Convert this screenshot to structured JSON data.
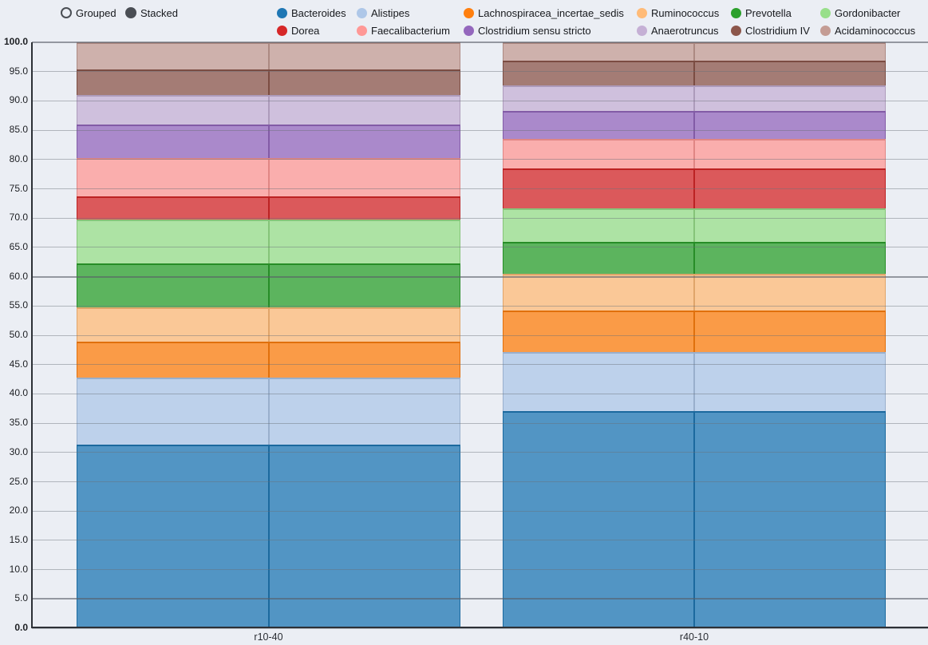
{
  "controls": {
    "grouped_label": "Grouped",
    "stacked_label": "Stacked",
    "selected_mode": "Stacked"
  },
  "chart_data": {
    "type": "bar",
    "subtype": "stacked-percentage",
    "title": "",
    "xlabel": "",
    "ylabel": "",
    "categories": [
      "r10-40",
      "r40-10"
    ],
    "bars_per_category": 2,
    "series": [
      {
        "name": "Bacteroides",
        "color": "#1f77b4",
        "values": [
          31.3,
          37.1
        ]
      },
      {
        "name": "Alistipes",
        "color": "#aec7e8",
        "values": [
          11.5,
          10.1
        ]
      },
      {
        "name": "Lachnospiracea_incertae_sedis",
        "color": "#ff7f0e",
        "values": [
          6.1,
          7.0
        ]
      },
      {
        "name": "Ruminococcus",
        "color": "#ffbb78",
        "values": [
          5.9,
          6.3
        ]
      },
      {
        "name": "Prevotella",
        "color": "#2ca02c",
        "values": [
          7.5,
          5.5
        ]
      },
      {
        "name": "Gordonibacter",
        "color": "#98df8a",
        "values": [
          7.4,
          5.7
        ]
      },
      {
        "name": "Dorea",
        "color": "#d62728",
        "values": [
          4.0,
          6.8
        ]
      },
      {
        "name": "Faecalibacterium",
        "color": "#ff9896",
        "values": [
          6.5,
          5.0
        ]
      },
      {
        "name": "Clostridium sensu stricto",
        "color": "#9467bd",
        "values": [
          5.8,
          4.8
        ]
      },
      {
        "name": "Anaerotruncus",
        "color": "#c5b0d5",
        "values": [
          5.0,
          4.3
        ]
      },
      {
        "name": "Clostridium IV",
        "color": "#8c564b",
        "values": [
          4.3,
          4.2
        ]
      },
      {
        "name": "Acidaminococcus",
        "color": "#c49c94",
        "values": [
          4.7,
          3.2
        ]
      }
    ],
    "ylim": [
      0,
      100
    ],
    "ytick_step": 5,
    "ytick_labels": [
      "0.0",
      "5.0",
      "10.0",
      "15.0",
      "20.0",
      "25.0",
      "30.0",
      "35.0",
      "40.0",
      "45.0",
      "50.0",
      "55.0",
      "60.0",
      "65.0",
      "70.0",
      "75.0",
      "80.0",
      "85.0",
      "90.0",
      "95.0",
      "100.0"
    ],
    "bold_ytick_labels": [
      "0.0",
      "100.0"
    ],
    "emphasized_gridlines": [
      5,
      60,
      100
    ],
    "grid": true,
    "legend_position": "top",
    "bar_fill_opacity": 0.75
  },
  "colors": {
    "background": "#ebeef4",
    "axis": "#2c3036",
    "text": "#17191d",
    "radio": "#4a4e54"
  }
}
